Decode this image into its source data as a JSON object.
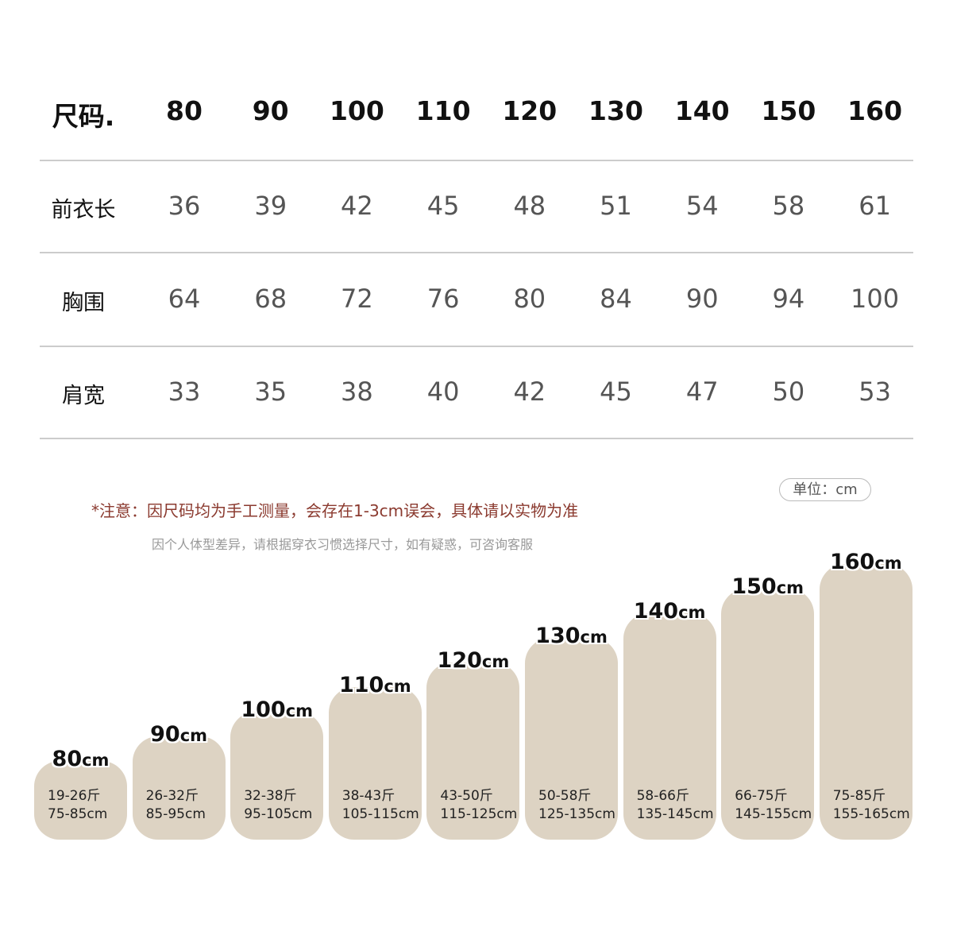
{
  "table": {
    "header": [
      "尺码.",
      "80",
      "90",
      "100",
      "110",
      "120",
      "130",
      "140",
      "150",
      "160"
    ],
    "rows": [
      [
        "前衣长",
        "36",
        "39",
        "42",
        "45",
        "48",
        "51",
        "54",
        "58",
        "61"
      ],
      [
        "胸围",
        "64",
        "68",
        "72",
        "76",
        "80",
        "84",
        "90",
        "94",
        "100"
      ],
      [
        "肩宽",
        "33",
        "35",
        "38",
        "40",
        "42",
        "45",
        "47",
        "50",
        "53"
      ]
    ]
  },
  "note": "*注意：因尺码均为手工测量，会存在1-3cm误会，具体请以实物为准",
  "subnote": "因个人体型差异，请根据穿衣习惯选择尺寸，如有疑惑，可咨询客服",
  "unit_badge": "单位：cm",
  "cards": [
    {
      "size": "80",
      "unit": "cm",
      "weight": "19-26斤",
      "height": "75-85cm"
    },
    {
      "size": "90",
      "unit": "cm",
      "weight": "26-32斤",
      "height": "85-95cm"
    },
    {
      "size": "100",
      "unit": "cm",
      "weight": "32-38斤",
      "height": "95-105cm"
    },
    {
      "size": "110",
      "unit": "cm",
      "weight": "38-43斤",
      "height": "105-115cm"
    },
    {
      "size": "120",
      "unit": "cm",
      "weight": "43-50斤",
      "height": "115-125cm"
    },
    {
      "size": "130",
      "unit": "cm",
      "weight": "50-58斤",
      "height": "125-135cm"
    },
    {
      "size": "140",
      "unit": "cm",
      "weight": "58-66斤",
      "height": "135-145cm"
    },
    {
      "size": "150",
      "unit": "cm",
      "weight": "66-75斤",
      "height": "145-155cm"
    },
    {
      "size": "160",
      "unit": "cm",
      "weight": "75-85斤",
      "height": "155-165cm"
    }
  ]
}
